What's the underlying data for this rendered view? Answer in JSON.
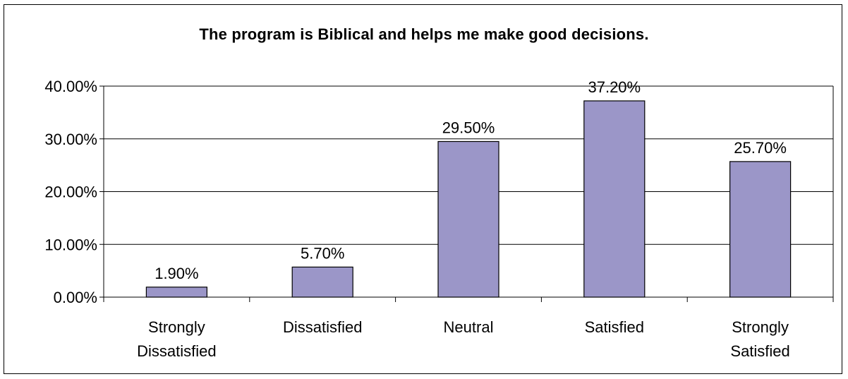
{
  "chart_data": {
    "type": "bar",
    "title": "The program is Biblical and helps me make good decisions.",
    "categories": [
      [
        "Strongly",
        "Dissatisfied"
      ],
      [
        "Dissatisfied"
      ],
      [
        "Neutral"
      ],
      [
        "Satisfied"
      ],
      [
        "Strongly",
        "Satisfied"
      ]
    ],
    "values": [
      1.9,
      5.7,
      29.5,
      37.2,
      25.7
    ],
    "data_labels": [
      "1.90%",
      "5.70%",
      "29.50%",
      "37.20%",
      "25.70%"
    ],
    "y_ticks": [
      "0.00%",
      "10.00%",
      "20.00%",
      "30.00%",
      "40.00%"
    ],
    "ylim": [
      0,
      40
    ],
    "grid": true,
    "legend": "none",
    "colors": {
      "bar_fill": "#9b96c8",
      "bar_stroke": "#000000",
      "grid": "#000000"
    }
  }
}
